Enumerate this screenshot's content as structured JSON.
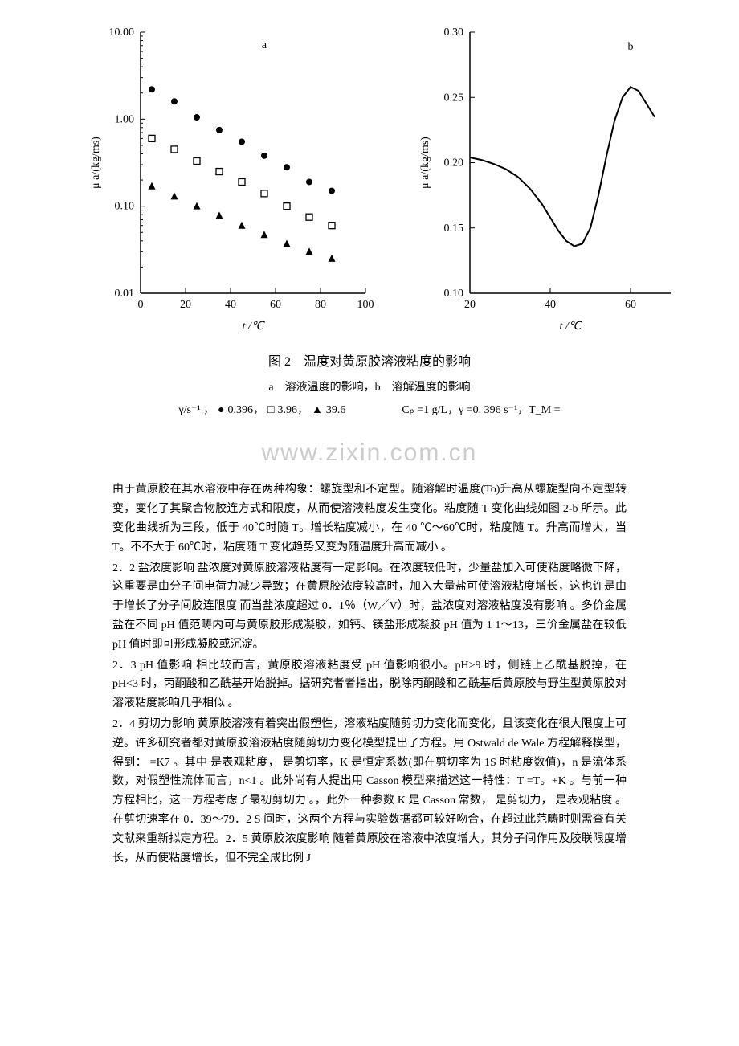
{
  "chart_a": {
    "type": "scatter-log",
    "label": "a",
    "xlabel": "t /℃",
    "ylabel": "μ a/(kg/ms)",
    "xlim": [
      0,
      100
    ],
    "ylim_log": [
      0.01,
      10.0
    ],
    "xticks": [
      0,
      20,
      40,
      60,
      80,
      100
    ],
    "yticks_log": [
      "0.01",
      "0.10",
      "1.00",
      "10.00"
    ],
    "axis_color": "#000000",
    "background": "#ffffff",
    "series": [
      {
        "marker": "filled-circle",
        "color": "#000000",
        "values": [
          {
            "x": 5,
            "y": 2.2
          },
          {
            "x": 15,
            "y": 1.6
          },
          {
            "x": 25,
            "y": 1.05
          },
          {
            "x": 35,
            "y": 0.75
          },
          {
            "x": 45,
            "y": 0.55
          },
          {
            "x": 55,
            "y": 0.38
          },
          {
            "x": 65,
            "y": 0.28
          },
          {
            "x": 75,
            "y": 0.19
          },
          {
            "x": 85,
            "y": 0.15
          }
        ]
      },
      {
        "marker": "open-square",
        "color": "#000000",
        "values": [
          {
            "x": 5,
            "y": 0.6
          },
          {
            "x": 15,
            "y": 0.45
          },
          {
            "x": 25,
            "y": 0.33
          },
          {
            "x": 35,
            "y": 0.25
          },
          {
            "x": 45,
            "y": 0.19
          },
          {
            "x": 55,
            "y": 0.14
          },
          {
            "x": 65,
            "y": 0.1
          },
          {
            "x": 75,
            "y": 0.075
          },
          {
            "x": 85,
            "y": 0.06
          }
        ]
      },
      {
        "marker": "filled-triangle",
        "color": "#000000",
        "values": [
          {
            "x": 5,
            "y": 0.17
          },
          {
            "x": 15,
            "y": 0.13
          },
          {
            "x": 25,
            "y": 0.1
          },
          {
            "x": 35,
            "y": 0.078
          },
          {
            "x": 45,
            "y": 0.06
          },
          {
            "x": 55,
            "y": 0.047
          },
          {
            "x": 65,
            "y": 0.037
          },
          {
            "x": 75,
            "y": 0.03
          },
          {
            "x": 85,
            "y": 0.025
          }
        ]
      }
    ]
  },
  "chart_b": {
    "type": "line",
    "label": "b",
    "xlabel": "t /℃",
    "ylabel": "μ a/(kg/ms)",
    "xlim": [
      20,
      70
    ],
    "ylim": [
      0.1,
      0.3
    ],
    "xticks": [
      20,
      40,
      60
    ],
    "yticks": [
      "0.10",
      "0.15",
      "0.20",
      "0.25",
      "0.30"
    ],
    "axis_color": "#000000",
    "background": "#ffffff",
    "curve_color": "#000000",
    "curve_width": 2,
    "curve": [
      {
        "x": 20,
        "y": 0.204
      },
      {
        "x": 23,
        "y": 0.202
      },
      {
        "x": 26,
        "y": 0.199
      },
      {
        "x": 29,
        "y": 0.195
      },
      {
        "x": 32,
        "y": 0.189
      },
      {
        "x": 35,
        "y": 0.18
      },
      {
        "x": 38,
        "y": 0.168
      },
      {
        "x": 40,
        "y": 0.158
      },
      {
        "x": 42,
        "y": 0.148
      },
      {
        "x": 44,
        "y": 0.14
      },
      {
        "x": 46,
        "y": 0.136
      },
      {
        "x": 48,
        "y": 0.138
      },
      {
        "x": 50,
        "y": 0.15
      },
      {
        "x": 52,
        "y": 0.175
      },
      {
        "x": 54,
        "y": 0.205
      },
      {
        "x": 56,
        "y": 0.232
      },
      {
        "x": 58,
        "y": 0.25
      },
      {
        "x": 60,
        "y": 0.258
      },
      {
        "x": 62,
        "y": 0.255
      },
      {
        "x": 64,
        "y": 0.245
      },
      {
        "x": 66,
        "y": 0.235
      }
    ]
  },
  "figure": {
    "caption": "图 2　温度对黄原胶溶液粘度的影响",
    "subcaption": "a　溶液温度的影响，b　溶解温度的影响"
  },
  "legend": {
    "left_prefix": "γ/s⁻¹ ，",
    "circle_val": "0.396，",
    "square_val": "3.96，",
    "triangle_val": "39.6",
    "right": "Cₚ =1 g/L，γ =0. 396 s⁻¹，T_M ="
  },
  "watermark": "www.zixin.com.cn",
  "paragraphs": {
    "p1": "由于黄原胶在其水溶液中存在两种构象：螺旋型和不定型。随溶解时温度(To)升高从螺旋型向不定型转变，变化了其聚合物胶连方式和限度，从而使溶液粘度发生变化。粘度随 T 变化曲线如图 2-b 所示。此变化曲线折为三段，低于 40℃时随 T。增长粘度减小，在 40 ℃～60℃时，粘度随 T。升高而增大，当 T。不不大于 60℃时，粘度随 T 变化趋势又变为随温度升高而减小 。",
    "p2": "2．2 盐浓度影响 盐浓度对黄原胶溶液粘度有一定影响。在浓度较低时，少量盐加入可使粘度略微下降，这重要是由分子间电荷力减少导致；在黄原胶浓度较高时，加入大量盐可使溶液粘度增长，这也许是由于增长了分子间胶连限度  而当盐浓度超过 0．1％（W／V）时，盐浓度对溶液粘度没有影响 。多价金属盐在不同 pH 值范畴内可与黄原胶形成凝胶，如钙、镁盐形成凝胶 pH 值为 1 1～13，三价金属盐在较低 pH 值时即可形成凝胶或沉淀。",
    "p3": "2．3 pH 值影响 相比较而言，黄原胶溶液粘度受 pH 值影响很小。pH>9 时，侧链上乙酰基脱掉，在 pH<3 时，丙酮酸和乙酰基开始脱掉。据研究者者指出，脱除丙酮酸和乙酰基后黄原胶与野生型黄原胶对溶液粘度影响几乎相似 。",
    "p4": "2．4 剪切力影响 黄原胶溶液有着突出假塑性，溶液粘度随剪切力变化而变化，且该变化在很大限度上可逆。许多研究者都对黄原胶溶液粘度随剪切力变化模型提出了方程。用 Ostwald de Wale 方程解释模型，得到：  =K7  。其中  是表观粘度，  是剪切率，K 是恒定系数(即在剪切率为 1S  时粘度数值)，n 是流体系数，对假塑性流体而言，n<1 。此外尚有人提出用 Casson 模型来描述这一特性：T =T。+K  。与前一种方程相比，这一方程考虑了最初剪切力 。，此外一种参数 K 是 Casson 常数，  是剪切力，  是表观粘度 。在剪切速率在 0．39～79．2 S 间时，这两个方程与实验数据都可较好吻合，在超过此范畴时则需查有关文献来重新拟定方程。2．5 黄原胶浓度影响 随着黄原胶在溶液中浓度增大，其分子间作用及胶联限度增长，从而使粘度增长，但不完全成比例  J"
  }
}
